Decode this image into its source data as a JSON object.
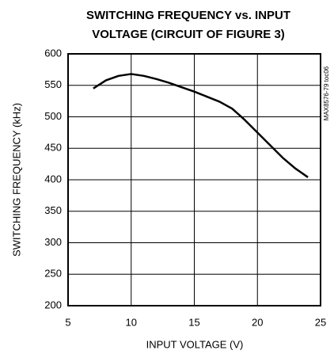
{
  "chart_data": {
    "type": "line",
    "title": [
      "SWITCHING FREQUENCY vs. INPUT",
      "VOLTAGE (CIRCUIT OF FIGURE 3)"
    ],
    "xlabel": "INPUT VOLTAGE (V)",
    "ylabel": "SWITCHING FREQUENCY (kHz)",
    "annotation": "MAX8576-79 toc06",
    "x": [
      7,
      8,
      9,
      10,
      11,
      12,
      13,
      14,
      15,
      16,
      17,
      18,
      19,
      20,
      21,
      22,
      23,
      24
    ],
    "values": [
      545,
      558,
      565,
      568,
      565,
      560,
      554,
      547,
      540,
      532,
      524,
      513,
      495,
      475,
      455,
      435,
      418,
      404
    ],
    "color": "#000000",
    "xlim": [
      5,
      25
    ],
    "xticks": [
      5,
      10,
      15,
      20,
      25
    ],
    "ylim": [
      200,
      600
    ],
    "yticks": [
      200,
      250,
      300,
      350,
      400,
      450,
      500,
      550,
      600
    ],
    "grid": true
  }
}
